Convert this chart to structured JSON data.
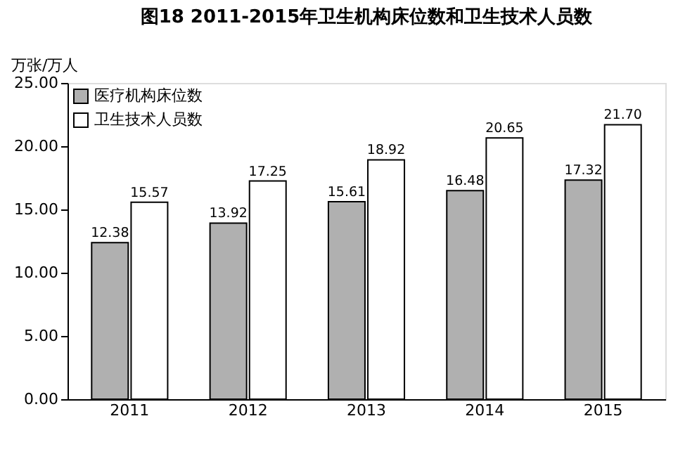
{
  "chart_data": {
    "type": "bar",
    "title": "图18  2011-2015年卫生机构床位数和卫生技术人员数",
    "ylabel": "万张/万人",
    "categories": [
      "2011",
      "2012",
      "2013",
      "2014",
      "2015"
    ],
    "series": [
      {
        "name": "医疗机构床位数",
        "color": "#b0b0b0",
        "values": [
          12.38,
          13.92,
          15.61,
          16.48,
          17.32
        ]
      },
      {
        "name": "卫生技术人员数",
        "color": "#ffffff",
        "values": [
          15.57,
          17.25,
          18.92,
          20.65,
          21.7
        ]
      }
    ],
    "value_labels": [
      [
        "12.38",
        "13.92",
        "15.61",
        "16.48",
        "17.32"
      ],
      [
        "15.57",
        "17.25",
        "18.92",
        "20.65",
        "21.70"
      ]
    ],
    "ylim": [
      0,
      25
    ],
    "yticks": [
      {
        "value": 0,
        "label": "0.00"
      },
      {
        "value": 5,
        "label": "5.00"
      },
      {
        "value": 10,
        "label": "10.00"
      },
      {
        "value": 15,
        "label": "15.00"
      },
      {
        "value": 20,
        "label": "20.00"
      },
      {
        "value": 25,
        "label": "25.00"
      }
    ],
    "grid": false,
    "legend": "top left"
  }
}
